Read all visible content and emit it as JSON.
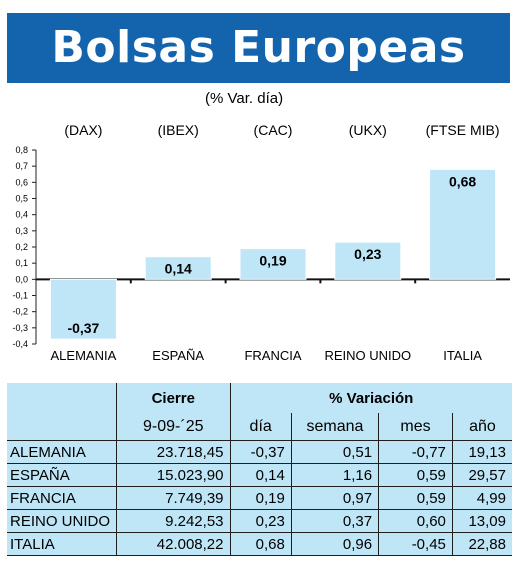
{
  "header": {
    "title": "Bolsas Europeas",
    "subtitle": "(% Var. día)"
  },
  "chart_data": {
    "type": "bar",
    "indices": [
      "(DAX)",
      "(IBEX)",
      "(CAC)",
      "(UKX)",
      "(FTSE MIB)"
    ],
    "categories": [
      "ALEMANIA",
      "ESPAÑA",
      "FRANCIA",
      "REINO UNIDO",
      "ITALIA"
    ],
    "values": [
      -0.37,
      0.14,
      0.19,
      0.23,
      0.68
    ],
    "value_labels": [
      "-0,37",
      "0,14",
      "0,19",
      "0,23",
      "0,68"
    ],
    "ylim": [
      -0.4,
      0.8
    ],
    "yticks": [
      0.8,
      0.7,
      0.6,
      0.5,
      0.4,
      0.3,
      0.2,
      0.1,
      0.0,
      -0.1,
      -0.2,
      -0.3,
      -0.4
    ],
    "ytick_labels": [
      "0,8",
      "0,7",
      "0,6",
      "0,5",
      "0,4",
      "0,3",
      "0,2",
      "0,1",
      "0,0",
      "-0,1",
      "-0,2",
      "-0,3",
      "-0,4"
    ],
    "bar_color": "#bfe6f7",
    "grid": false
  },
  "table": {
    "group_headers": {
      "close": "Cierre",
      "variation": "% Variación"
    },
    "date": "9-09-´25",
    "columns": [
      "día",
      "semana",
      "mes",
      "año"
    ],
    "rows": [
      {
        "name": "ALEMANIA",
        "close": "23.718,45",
        "dia": "-0,37",
        "semana": "0,51",
        "mes": "-0,77",
        "ano": "19,13"
      },
      {
        "name": "ESPAÑA",
        "close": "15.023,90",
        "dia": "0,14",
        "semana": "1,16",
        "mes": "0,59",
        "ano": "29,57"
      },
      {
        "name": "FRANCIA",
        "close": "7.749,39",
        "dia": "0,19",
        "semana": "0,97",
        "mes": "0,59",
        "ano": "4,99"
      },
      {
        "name": "REINO UNIDO",
        "close": "9.242,53",
        "dia": "0,23",
        "semana": "0,37",
        "mes": "0,60",
        "ano": "13,09"
      },
      {
        "name": "ITALIA",
        "close": "42.008,22",
        "dia": "0,68",
        "semana": "0,96",
        "mes": "-0,45",
        "ano": "22,88"
      }
    ]
  },
  "colors": {
    "banner": "#1464ad",
    "bar": "#bfe6f7",
    "table_bg": "#bfe6f7"
  }
}
